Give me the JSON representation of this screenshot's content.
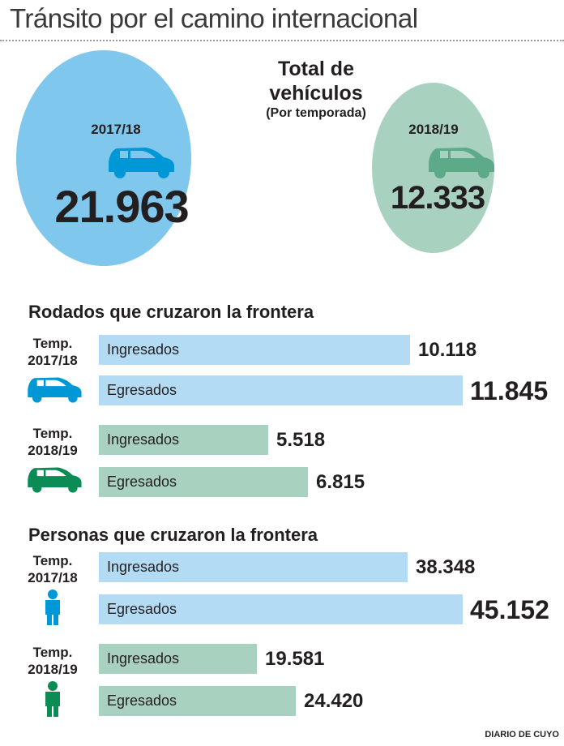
{
  "title": "Tránsito por el camino internacional",
  "totals": {
    "label_main": "Total de vehículos",
    "label_sub": "(Por temporada)",
    "items": [
      {
        "season": "2017/18",
        "value": "21.963"
      },
      {
        "season": "2018/19",
        "value": "12.333"
      }
    ]
  },
  "colors": {
    "blue_circle": "#7fc7ec",
    "blue_bar": "#b3dcf4",
    "blue_icon": "#0097d7",
    "green_circle": "#a9d1c0",
    "green_bar": "#a9d1c0",
    "green_icon": "#5daa88",
    "green_icon_dark": "#0b8c55"
  },
  "chart_data": [
    {
      "type": "bar",
      "title": "Rodados que cruzaron la frontera",
      "groups": [
        {
          "label": "Temp. 2017/18",
          "categories": [
            "Ingresados",
            "Egresados"
          ],
          "values": [
            10118,
            11845
          ],
          "value_labels": [
            "10.118",
            "11.845"
          ]
        },
        {
          "label": "Temp. 2018/19",
          "categories": [
            "Ingresados",
            "Egresados"
          ],
          "values": [
            5518,
            6815
          ],
          "value_labels": [
            "5.518",
            "6.815"
          ]
        }
      ]
    },
    {
      "type": "bar",
      "title": "Personas que cruzaron la frontera",
      "groups": [
        {
          "label": "Temp. 2017/18",
          "categories": [
            "Ingresados",
            "Egresados"
          ],
          "values": [
            38348,
            45152
          ],
          "value_labels": [
            "38.348",
            "45.152"
          ]
        },
        {
          "label": "Temp. 2018/19",
          "categories": [
            "Ingresados",
            "Egresados"
          ],
          "values": [
            19581,
            24420
          ],
          "value_labels": [
            "19.581",
            "24.420"
          ]
        }
      ]
    }
  ],
  "temp_labels": {
    "t1a": "Temp.",
    "t1b": "2017/18",
    "t2a": "Temp.",
    "t2b": "2018/19"
  },
  "credit": "DIARIO DE CUYO"
}
